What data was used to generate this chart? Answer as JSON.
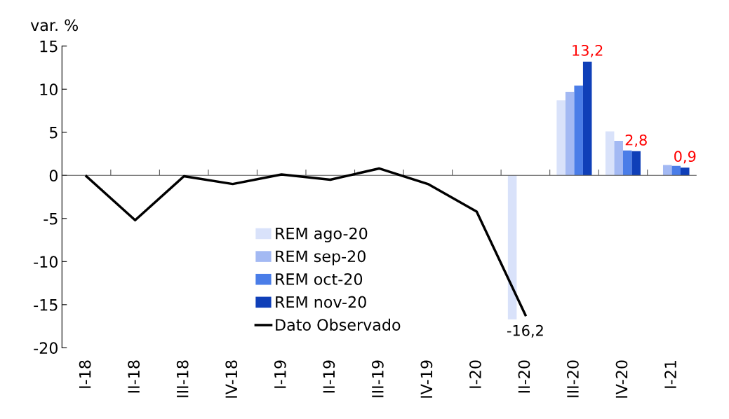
{
  "chart_data": {
    "type": "bar",
    "ylabel": "var. %",
    "categories": [
      "I-18",
      "II-18",
      "III-18",
      "IV-18",
      "I-19",
      "II-19",
      "III-19",
      "IV-19",
      "I-20",
      "II-20",
      "III-20",
      "IV-20",
      "I-21"
    ],
    "series": [
      {
        "name": "REM ago-20",
        "color": "#d9e2fa",
        "values": [
          null,
          null,
          null,
          null,
          null,
          null,
          null,
          null,
          null,
          -16.7,
          8.7,
          5.1,
          null
        ]
      },
      {
        "name": "REM sep-20",
        "color": "#a3b9f3",
        "values": [
          null,
          null,
          null,
          null,
          null,
          null,
          null,
          null,
          null,
          null,
          9.7,
          4.0,
          1.2
        ]
      },
      {
        "name": "REM oct-20",
        "color": "#4a7de8",
        "values": [
          null,
          null,
          null,
          null,
          null,
          null,
          null,
          null,
          null,
          null,
          10.4,
          2.9,
          1.1
        ]
      },
      {
        "name": "REM nov-20",
        "color": "#0f3fb8",
        "values": [
          null,
          null,
          null,
          null,
          null,
          null,
          null,
          null,
          null,
          null,
          13.2,
          2.8,
          0.9
        ],
        "value_labels": [
          null,
          null,
          null,
          null,
          null,
          null,
          null,
          null,
          null,
          null,
          "13,2",
          "2,8",
          "0,9"
        ]
      },
      {
        "name": "Dato Observado",
        "type": "line",
        "color": "#000000",
        "values": [
          -0.1,
          -5.2,
          -0.1,
          -1.0,
          0.1,
          -0.5,
          0.8,
          -1.0,
          -4.2,
          -16.2,
          null,
          null,
          null
        ],
        "value_labels": [
          null,
          null,
          null,
          null,
          null,
          null,
          null,
          null,
          null,
          "-16,2",
          null,
          null,
          null
        ]
      }
    ],
    "ylim": [
      -20,
      15
    ],
    "yticks": [
      -20,
      -15,
      -10,
      -5,
      0,
      5,
      10,
      15
    ],
    "legend": "bottom",
    "marker": "none",
    "line_style": "solid"
  }
}
